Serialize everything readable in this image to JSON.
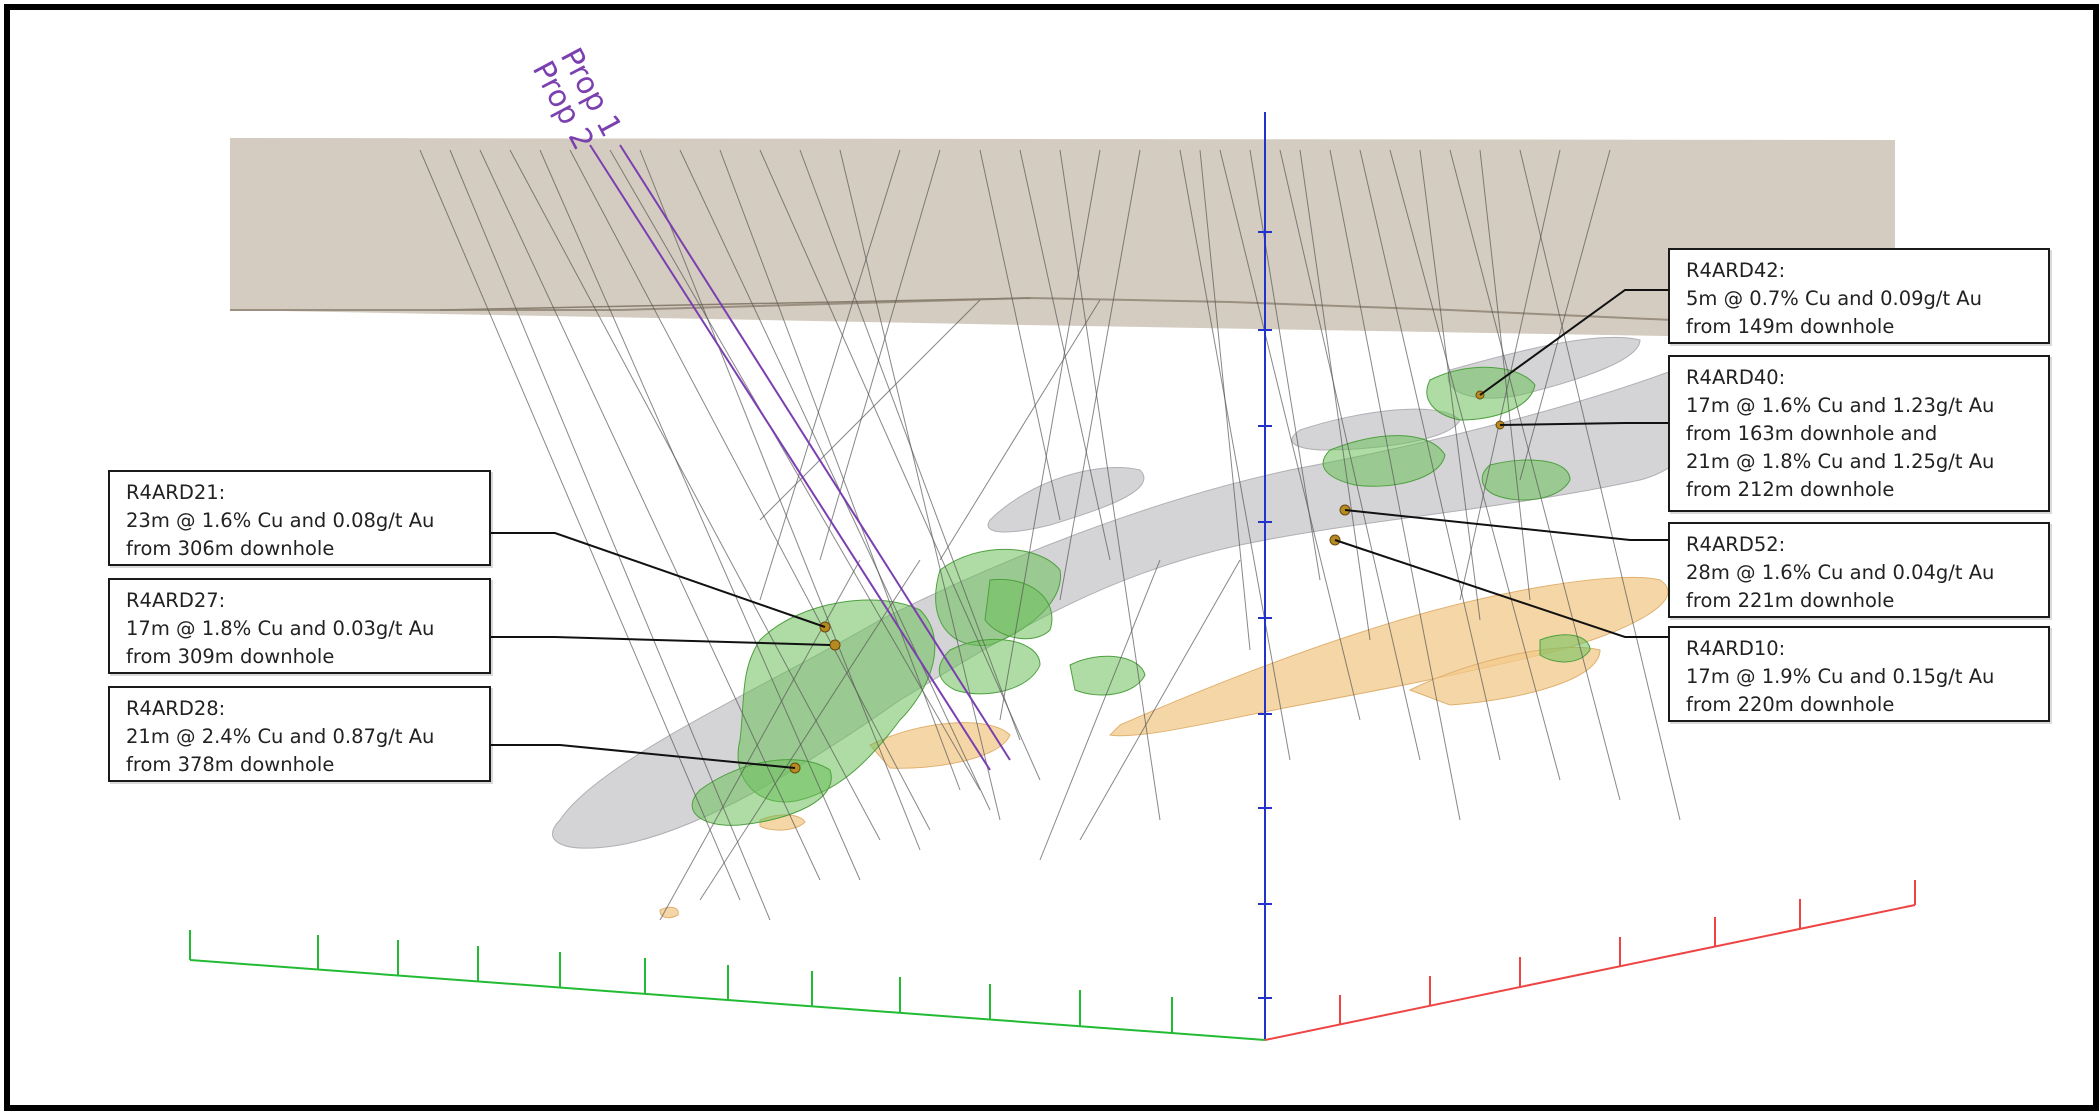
{
  "proposed_holes": [
    {
      "label": "Prop 1"
    },
    {
      "label": "Prop 2"
    }
  ],
  "callouts": [
    {
      "id": "r4ard21",
      "lines": [
        "R4ARD21:",
        "23m @ 1.6% Cu and 0.08g/t Au",
        "from 306m downhole"
      ]
    },
    {
      "id": "r4ard27",
      "lines": [
        "R4ARD27:",
        "17m @ 1.8% Cu and 0.03g/t Au",
        "from 309m downhole"
      ]
    },
    {
      "id": "r4ard28",
      "lines": [
        "R4ARD28:",
        "21m @ 2.4% Cu and 0.87g/t Au",
        "from 378m downhole"
      ]
    },
    {
      "id": "r4ard42",
      "lines": [
        "R4ARD42:",
        "5m @ 0.7% Cu and 0.09g/t Au",
        "from 149m downhole"
      ]
    },
    {
      "id": "r4ard40",
      "lines": [
        "R4ARD40:",
        "17m @ 1.6% Cu and 1.23g/t Au",
        "from 163m downhole and",
        "21m @ 1.8% Cu and 1.25g/t Au",
        "from 212m downhole"
      ]
    },
    {
      "id": "r4ard52",
      "lines": [
        "R4ARD52:",
        "28m @ 1.6% Cu and 0.04g/t Au",
        "from 221m downhole"
      ]
    },
    {
      "id": "r4ard10",
      "lines": [
        "R4ARD10:",
        "17m @ 1.9% Cu and 0.15g/t Au",
        "from 220m downhole"
      ]
    }
  ],
  "colors": {
    "surface_slab": "#c9bfb0",
    "grey_body": "#cfcfd2",
    "green_body": "#6cbf5a",
    "orange_body": "#f2c98a",
    "drill_trace": "#555555",
    "proposed_trace": "#7b3fb0",
    "vertical_axis": "#2233cc",
    "north_axis": "#22bb33",
    "east_axis": "#ee4444"
  }
}
